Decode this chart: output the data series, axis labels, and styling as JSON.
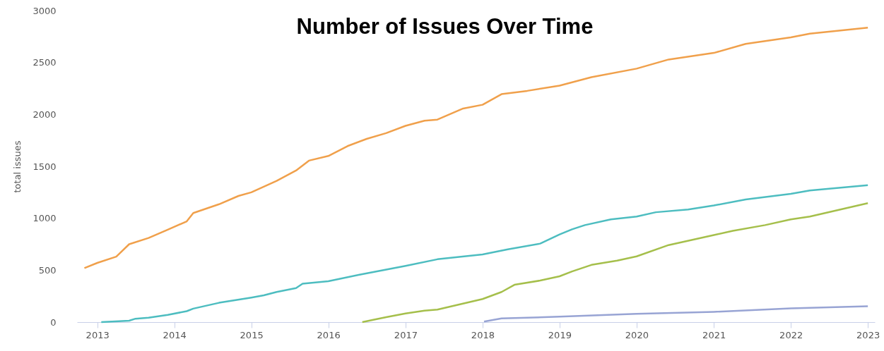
{
  "chart_data": {
    "type": "line",
    "title": "Number of Issues Over Time",
    "ylabel": "total issues",
    "xlim": [
      "2012-09-27",
      "2023-02-03"
    ],
    "ylim": [
      0,
      3000
    ],
    "xticks": [
      "2013",
      "2014",
      "2015",
      "2016",
      "2017",
      "2018",
      "2019",
      "2020",
      "2021",
      "2022",
      "2023"
    ],
    "yticks": [
      0,
      500,
      1000,
      1500,
      2000,
      2500,
      3000
    ],
    "grid": false,
    "series": [
      {
        "color": "#f0a04b",
        "x": [
          "2012-11-01",
          "2013-01-01",
          "2013-04-01",
          "2013-06-01",
          "2013-09-01",
          "2013-12-01",
          "2014-03-01",
          "2014-04-01",
          "2014-08-01",
          "2014-11-01",
          "2015-01-01",
          "2015-05-01",
          "2015-08-01",
          "2015-10-01",
          "2016-01-01",
          "2016-04-01",
          "2016-07-01",
          "2016-10-01",
          "2017-01-01",
          "2017-04-01",
          "2017-06-01",
          "2017-10-01",
          "2018-01-01",
          "2018-04-01",
          "2018-08-01",
          "2019-01-01",
          "2019-06-01",
          "2020-01-01",
          "2020-06-01",
          "2021-01-01",
          "2021-06-01",
          "2022-01-01",
          "2022-04-01",
          "2023-01-01"
        ],
        "values": [
          520,
          570,
          630,
          750,
          810,
          890,
          970,
          1050,
          1135,
          1215,
          1250,
          1360,
          1460,
          1555,
          1600,
          1695,
          1765,
          1820,
          1890,
          1940,
          1950,
          2057,
          2093,
          2195,
          2227,
          2277,
          2359,
          2441,
          2529,
          2592,
          2679,
          2742,
          2778,
          2836
        ]
      },
      {
        "color": "#4dbdc0",
        "x": [
          "2013-01-20",
          "2013-06-01",
          "2013-07-01",
          "2013-09-01",
          "2013-12-01",
          "2014-03-01",
          "2014-04-01",
          "2014-08-01",
          "2015-01-01",
          "2015-03-01",
          "2015-05-01",
          "2015-08-01",
          "2015-09-01",
          "2016-01-01",
          "2016-06-01",
          "2017-01-01",
          "2017-06-01",
          "2018-01-01",
          "2018-05-01",
          "2018-10-01",
          "2019-01-01",
          "2019-03-01",
          "2019-05-01",
          "2019-09-01",
          "2020-01-01",
          "2020-04-01",
          "2020-09-01",
          "2021-01-01",
          "2021-06-01",
          "2022-01-01",
          "2022-04-01",
          "2023-01-01"
        ],
        "values": [
          0,
          14,
          33,
          42,
          70,
          105,
          130,
          186,
          236,
          258,
          290,
          328,
          370,
          394,
          458,
          541,
          605,
          652,
          701,
          756,
          844,
          893,
          934,
          989,
          1016,
          1058,
          1085,
          1123,
          1181,
          1236,
          1268,
          1318
        ]
      },
      {
        "color": "#a5bf4b",
        "x": [
          "2016-06-10",
          "2016-08-01",
          "2016-10-01",
          "2017-01-01",
          "2017-04-01",
          "2017-06-01",
          "2018-01-01",
          "2018-04-01",
          "2018-06-01",
          "2018-10-01",
          "2019-01-01",
          "2019-03-01",
          "2019-06-01",
          "2019-10-01",
          "2020-01-01",
          "2020-06-01",
          "2021-01-01",
          "2021-04-01",
          "2021-09-01",
          "2022-01-01",
          "2022-04-01",
          "2023-01-01"
        ],
        "values": [
          0,
          22,
          47,
          83,
          111,
          120,
          222,
          290,
          359,
          400,
          441,
          488,
          551,
          592,
          633,
          742,
          838,
          879,
          934,
          989,
          1016,
          1145
        ]
      },
      {
        "color": "#98a4d4",
        "x": [
          "2018-01-08",
          "2018-04-01",
          "2019-01-01",
          "2020-01-01",
          "2021-01-01",
          "2022-01-01",
          "2023-01-01"
        ],
        "values": [
          5,
          36,
          52,
          79,
          99,
          132,
          153
        ]
      }
    ]
  }
}
